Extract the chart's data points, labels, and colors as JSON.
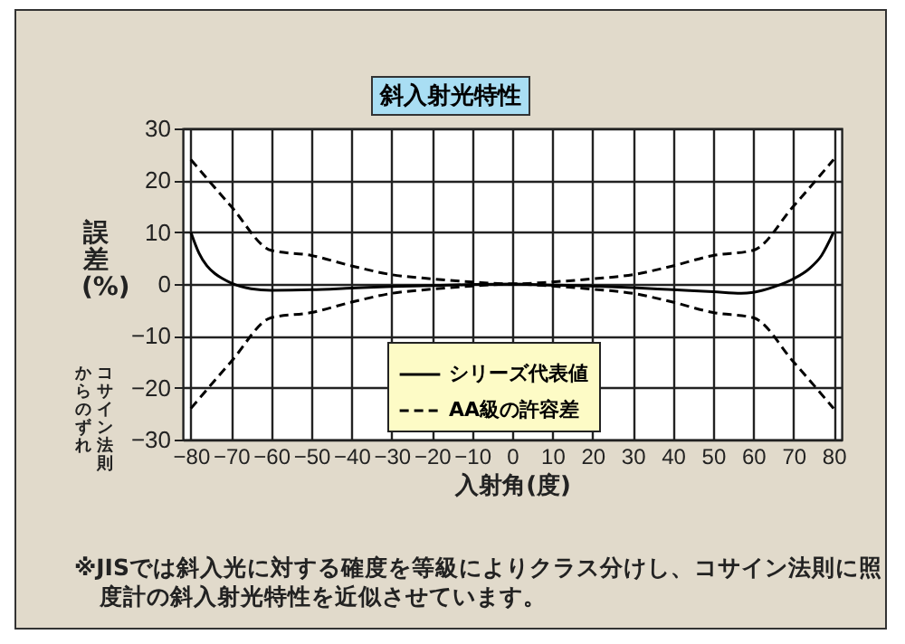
{
  "chart_data": {
    "type": "line",
    "title": "斜入射光特性",
    "xlabel": "入射角(度)",
    "ylabel": "誤差(%)",
    "annotations": [
      "コサイン法則からのずれ",
      "※JISでは斜入光に対する確度を等級によりクラス分けし、コサイン法則に照度計の斜入射光特性を近似させています。"
    ],
    "xlim": [
      -82,
      82
    ],
    "ylim": [
      -30,
      30
    ],
    "xticks": [
      -80,
      -70,
      -60,
      -50,
      -40,
      -30,
      -20,
      -10,
      0,
      10,
      20,
      30,
      40,
      50,
      60,
      70,
      80
    ],
    "yticks": [
      -30,
      -20,
      -10,
      0,
      10,
      20,
      30
    ],
    "grid": true,
    "legend": "bottom",
    "series": [
      {
        "name": "シリーズ代表値",
        "color": "#000000",
        "line_style": "solid",
        "x": [
          -80,
          -78,
          -76,
          -74,
          -72,
          -70,
          -65,
          -60,
          -50,
          -40,
          -30,
          -20,
          -10,
          0,
          10,
          20,
          30,
          40,
          50,
          57,
          60,
          65,
          70,
          74,
          77,
          80
        ],
        "values": [
          10,
          6,
          3.5,
          2,
          1,
          0.2,
          -0.9,
          -1.2,
          -1.1,
          -0.8,
          -0.5,
          -0.3,
          -0.1,
          0,
          -0.2,
          -0.4,
          -0.7,
          -1.1,
          -1.5,
          -1.8,
          -1.6,
          -0.6,
          1,
          3,
          5.5,
          10
        ]
      },
      {
        "name": "AA級の許容差",
        "color": "#000000",
        "line_style": "dashed",
        "x": [
          -80,
          -70,
          -60,
          -50,
          -40,
          -30,
          -20,
          -10,
          0,
          10,
          20,
          30,
          40,
          50,
          60,
          70,
          80
        ],
        "values": [
          24,
          15,
          6.5,
          5.5,
          3.5,
          1.8,
          1,
          0.4,
          0,
          0.4,
          1,
          1.8,
          3.5,
          5.5,
          6.5,
          15,
          24
        ]
      },
      {
        "color": "#000000",
        "line_style": "dashed",
        "x": [
          -80,
          -70,
          -60,
          -50,
          -40,
          -30,
          -20,
          -10,
          0,
          10,
          20,
          30,
          40,
          50,
          60,
          70,
          80
        ],
        "values": [
          -24,
          -15,
          -6.5,
          -5.5,
          -3.5,
          -1.8,
          -1,
          -0.4,
          0,
          -0.4,
          -1,
          -1.8,
          -3.5,
          -5.5,
          -6.5,
          -15,
          -24
        ]
      }
    ]
  }
}
